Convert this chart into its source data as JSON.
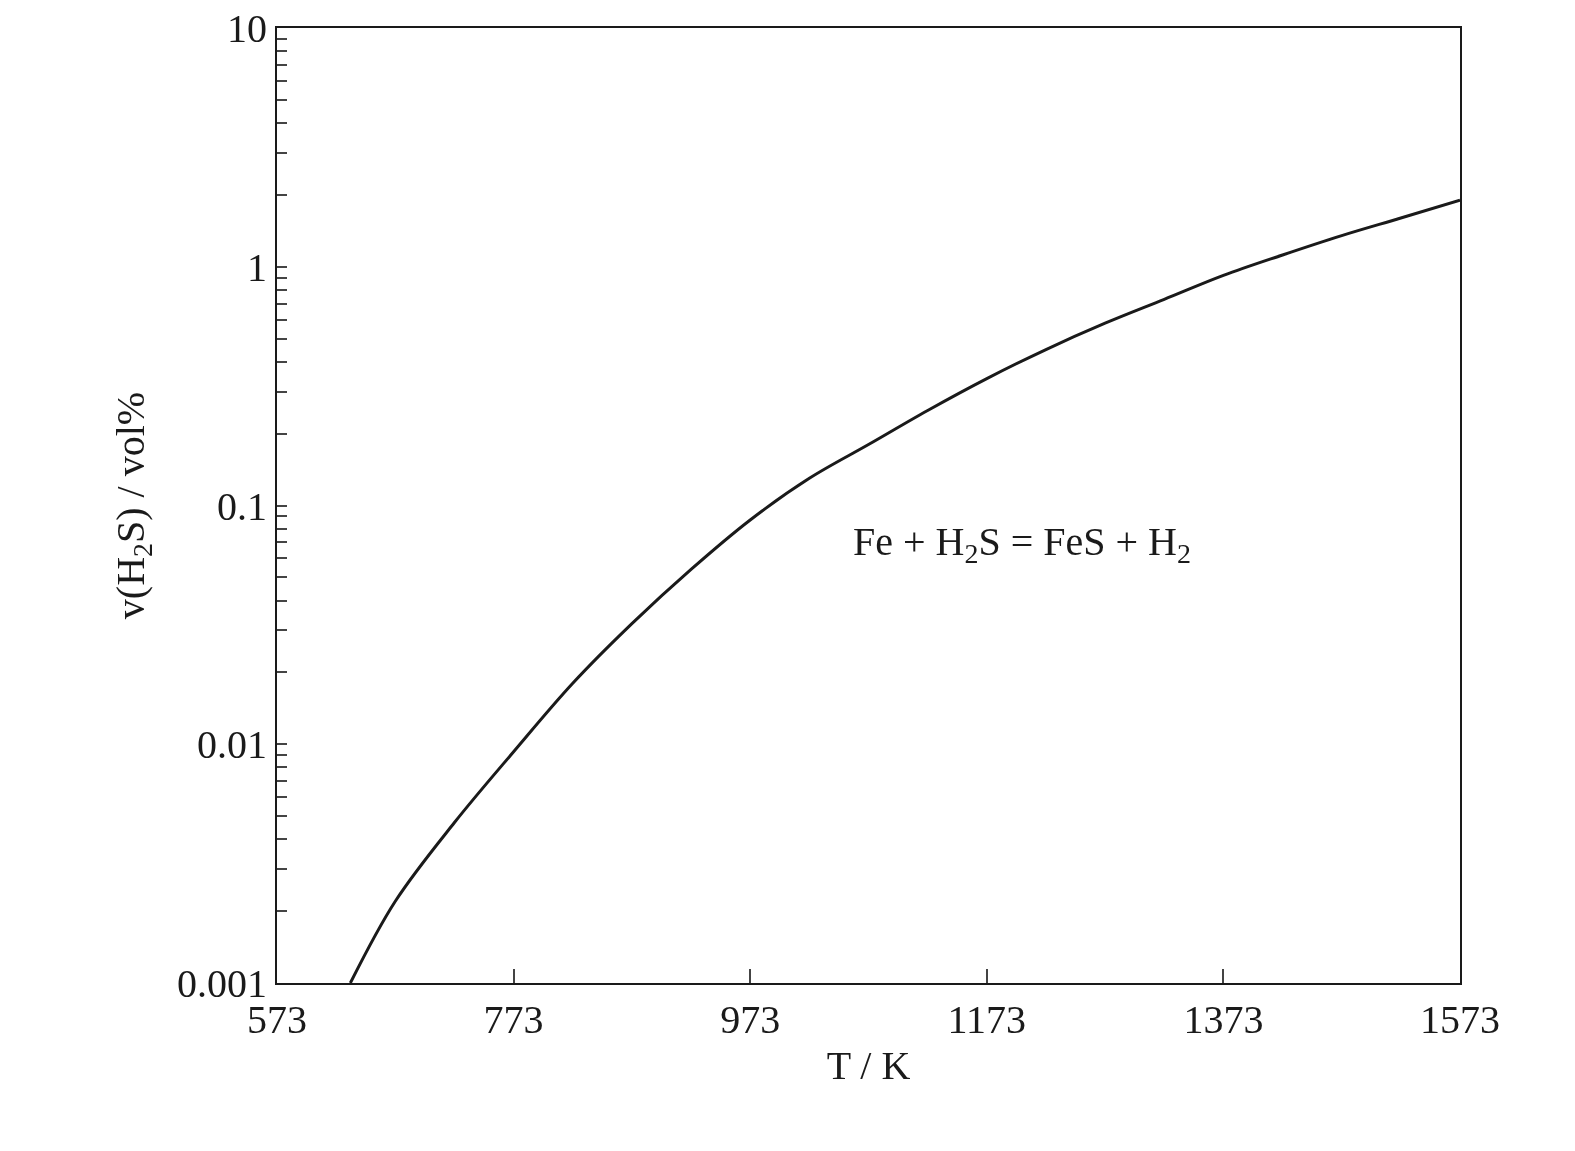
{
  "chart_data": {
    "type": "line",
    "xlabel": "T / K",
    "ylabel": "v(H$_{2}$S) / vol%",
    "log": "y",
    "grid": false,
    "marker": "none",
    "line_style": "solid",
    "xlim": [
      573,
      1573
    ],
    "xticks": [
      573,
      773,
      973,
      1173,
      1373,
      1573
    ],
    "ylim": [
      0.001,
      10
    ],
    "yticks": [
      {
        "value": 0.001,
        "label": "0.001"
      },
      {
        "value": 0.002,
        "label": null
      },
      {
        "value": 0.003,
        "label": null
      },
      {
        "value": 0.004,
        "label": null
      },
      {
        "value": 0.005,
        "label": null
      },
      {
        "value": 0.006,
        "label": null
      },
      {
        "value": 0.007,
        "label": null
      },
      {
        "value": 0.008,
        "label": null
      },
      {
        "value": 0.009,
        "label": null
      },
      {
        "value": 0.01,
        "label": "0.01"
      },
      {
        "value": 0.02,
        "label": null
      },
      {
        "value": 0.03,
        "label": null
      },
      {
        "value": 0.04,
        "label": null
      },
      {
        "value": 0.05,
        "label": null
      },
      {
        "value": 0.06,
        "label": null
      },
      {
        "value": 0.07,
        "label": null
      },
      {
        "value": 0.08,
        "label": null
      },
      {
        "value": 0.09,
        "label": null
      },
      {
        "value": 0.1,
        "label": "0.1"
      },
      {
        "value": 0.2,
        "label": null
      },
      {
        "value": 0.3,
        "label": null
      },
      {
        "value": 0.4,
        "label": null
      },
      {
        "value": 0.5,
        "label": null
      },
      {
        "value": 0.6,
        "label": null
      },
      {
        "value": 0.7,
        "label": null
      },
      {
        "value": 0.8,
        "label": null
      },
      {
        "value": 0.9,
        "label": null
      },
      {
        "value": 1,
        "label": "1"
      },
      {
        "value": 2,
        "label": null
      },
      {
        "value": 3,
        "label": null
      },
      {
        "value": 4,
        "label": null
      },
      {
        "value": 5,
        "label": null
      },
      {
        "value": 6,
        "label": null
      },
      {
        "value": 7,
        "label": null
      },
      {
        "value": 8,
        "label": null
      },
      {
        "value": 9,
        "label": null
      },
      {
        "value": 10,
        "label": "10"
      }
    ],
    "x": [
      635,
      673,
      723,
      773,
      823,
      873,
      923,
      973,
      1023,
      1073,
      1123,
      1173,
      1223,
      1273,
      1323,
      1373,
      1423,
      1473,
      1523,
      1573
    ],
    "series": [
      {
        "color": "#1a1a1a",
        "values": [
          0.001,
          0.0022,
          0.0047,
          0.0093,
          0.018,
          0.032,
          0.054,
          0.087,
          0.13,
          0.18,
          0.25,
          0.34,
          0.45,
          0.58,
          0.73,
          0.92,
          1.12,
          1.35,
          1.6,
          1.9
        ]
      }
    ],
    "annotations": [
      "Fe + H$_{2}$S = FeS + H$_{2}$"
    ]
  }
}
